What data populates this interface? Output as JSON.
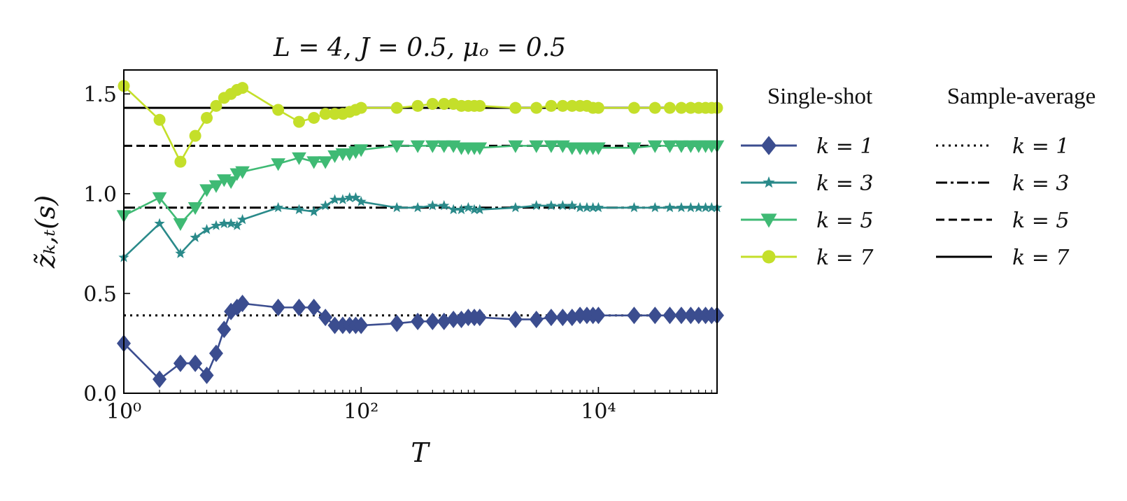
{
  "chart_data": {
    "type": "line",
    "title": "L = 4,  J = 0.5,  μₒ = 0.5",
    "xlabel": "T",
    "ylabel": "z̃ₖ,ₜ(s)",
    "xscale": "log",
    "xlim": [
      1,
      100000
    ],
    "ylim": [
      0.0,
      1.62
    ],
    "xticks": [
      {
        "value": 1,
        "label": "10⁰"
      },
      {
        "value": 100,
        "label": "10²"
      },
      {
        "value": 10000,
        "label": "10⁴"
      }
    ],
    "yticks": [
      {
        "value": 0.0,
        "label": "0.0"
      },
      {
        "value": 0.5,
        "label": "0.5"
      },
      {
        "value": 1.0,
        "label": "1.0"
      },
      {
        "value": 1.5,
        "label": "1.5"
      }
    ],
    "legend": {
      "placement": "right, outside plot",
      "single_shot_title": "Single-shot",
      "sample_average_title": "Sample-average"
    },
    "series": [
      {
        "name": "k = 1",
        "group": "single-shot",
        "color": "#3b4d8f",
        "marker": "diamond",
        "points": [
          [
            1,
            0.25
          ],
          [
            2,
            0.07
          ],
          [
            3,
            0.15
          ],
          [
            4,
            0.15
          ],
          [
            5,
            0.09
          ],
          [
            6,
            0.2
          ],
          [
            7,
            0.32
          ],
          [
            8,
            0.41
          ],
          [
            9,
            0.43
          ],
          [
            10,
            0.45
          ],
          [
            20,
            0.43
          ],
          [
            30,
            0.43
          ],
          [
            40,
            0.43
          ],
          [
            50,
            0.38
          ],
          [
            60,
            0.34
          ],
          [
            70,
            0.34
          ],
          [
            80,
            0.34
          ],
          [
            90,
            0.34
          ],
          [
            100,
            0.34
          ],
          [
            200,
            0.35
          ],
          [
            300,
            0.36
          ],
          [
            400,
            0.36
          ],
          [
            500,
            0.36
          ],
          [
            600,
            0.37
          ],
          [
            700,
            0.37
          ],
          [
            800,
            0.38
          ],
          [
            900,
            0.38
          ],
          [
            1000,
            0.38
          ],
          [
            2000,
            0.37
          ],
          [
            3000,
            0.37
          ],
          [
            4000,
            0.38
          ],
          [
            5000,
            0.38
          ],
          [
            6000,
            0.38
          ],
          [
            7000,
            0.39
          ],
          [
            8000,
            0.39
          ],
          [
            9000,
            0.39
          ],
          [
            10000,
            0.39
          ],
          [
            20000,
            0.39
          ],
          [
            30000,
            0.39
          ],
          [
            40000,
            0.39
          ],
          [
            50000,
            0.39
          ],
          [
            60000,
            0.39
          ],
          [
            70000,
            0.39
          ],
          [
            80000,
            0.39
          ],
          [
            90000,
            0.39
          ],
          [
            100000,
            0.39
          ]
        ]
      },
      {
        "name": "k = 3",
        "group": "single-shot",
        "color": "#2a8a8a",
        "marker": "star",
        "points": [
          [
            1,
            0.68
          ],
          [
            2,
            0.85
          ],
          [
            3,
            0.7
          ],
          [
            4,
            0.78
          ],
          [
            5,
            0.82
          ],
          [
            6,
            0.84
          ],
          [
            7,
            0.85
          ],
          [
            8,
            0.85
          ],
          [
            9,
            0.84
          ],
          [
            10,
            0.87
          ],
          [
            20,
            0.93
          ],
          [
            30,
            0.92
          ],
          [
            40,
            0.91
          ],
          [
            50,
            0.94
          ],
          [
            60,
            0.97
          ],
          [
            70,
            0.97
          ],
          [
            80,
            0.98
          ],
          [
            90,
            0.98
          ],
          [
            100,
            0.96
          ],
          [
            200,
            0.93
          ],
          [
            300,
            0.93
          ],
          [
            400,
            0.94
          ],
          [
            500,
            0.94
          ],
          [
            600,
            0.92
          ],
          [
            700,
            0.92
          ],
          [
            800,
            0.93
          ],
          [
            900,
            0.92
          ],
          [
            1000,
            0.92
          ],
          [
            2000,
            0.93
          ],
          [
            3000,
            0.94
          ],
          [
            4000,
            0.94
          ],
          [
            5000,
            0.94
          ],
          [
            6000,
            0.94
          ],
          [
            7000,
            0.93
          ],
          [
            8000,
            0.93
          ],
          [
            9000,
            0.93
          ],
          [
            10000,
            0.93
          ],
          [
            20000,
            0.93
          ],
          [
            30000,
            0.93
          ],
          [
            40000,
            0.93
          ],
          [
            50000,
            0.93
          ],
          [
            60000,
            0.93
          ],
          [
            70000,
            0.93
          ],
          [
            80000,
            0.93
          ],
          [
            90000,
            0.93
          ],
          [
            100000,
            0.93
          ]
        ]
      },
      {
        "name": "k = 5",
        "group": "single-shot",
        "color": "#3fba74",
        "marker": "triangle-down",
        "points": [
          [
            1,
            0.89
          ],
          [
            2,
            0.98
          ],
          [
            3,
            0.85
          ],
          [
            4,
            0.93
          ],
          [
            5,
            1.02
          ],
          [
            6,
            1.04
          ],
          [
            7,
            1.07
          ],
          [
            8,
            1.06
          ],
          [
            9,
            1.1
          ],
          [
            10,
            1.11
          ],
          [
            20,
            1.15
          ],
          [
            30,
            1.18
          ],
          [
            40,
            1.16
          ],
          [
            50,
            1.16
          ],
          [
            60,
            1.19
          ],
          [
            70,
            1.2
          ],
          [
            80,
            1.2
          ],
          [
            90,
            1.21
          ],
          [
            100,
            1.22
          ],
          [
            200,
            1.24
          ],
          [
            300,
            1.24
          ],
          [
            400,
            1.24
          ],
          [
            500,
            1.24
          ],
          [
            600,
            1.24
          ],
          [
            700,
            1.23
          ],
          [
            800,
            1.23
          ],
          [
            900,
            1.23
          ],
          [
            1000,
            1.23
          ],
          [
            2000,
            1.24
          ],
          [
            3000,
            1.24
          ],
          [
            4000,
            1.24
          ],
          [
            5000,
            1.24
          ],
          [
            6000,
            1.23
          ],
          [
            7000,
            1.23
          ],
          [
            8000,
            1.23
          ],
          [
            9000,
            1.23
          ],
          [
            10000,
            1.23
          ],
          [
            20000,
            1.23
          ],
          [
            30000,
            1.24
          ],
          [
            40000,
            1.24
          ],
          [
            50000,
            1.24
          ],
          [
            60000,
            1.24
          ],
          [
            70000,
            1.24
          ],
          [
            80000,
            1.24
          ],
          [
            90000,
            1.24
          ],
          [
            100000,
            1.24
          ]
        ]
      },
      {
        "name": "k = 7",
        "group": "single-shot",
        "color": "#c4df2a",
        "marker": "circle",
        "points": [
          [
            1,
            1.54
          ],
          [
            2,
            1.37
          ],
          [
            3,
            1.16
          ],
          [
            4,
            1.29
          ],
          [
            5,
            1.38
          ],
          [
            6,
            1.44
          ],
          [
            7,
            1.48
          ],
          [
            8,
            1.5
          ],
          [
            9,
            1.52
          ],
          [
            10,
            1.53
          ],
          [
            20,
            1.42
          ],
          [
            30,
            1.36
          ],
          [
            40,
            1.38
          ],
          [
            50,
            1.4
          ],
          [
            60,
            1.4
          ],
          [
            70,
            1.4
          ],
          [
            80,
            1.41
          ],
          [
            90,
            1.42
          ],
          [
            100,
            1.43
          ],
          [
            200,
            1.43
          ],
          [
            300,
            1.44
          ],
          [
            400,
            1.45
          ],
          [
            500,
            1.45
          ],
          [
            600,
            1.45
          ],
          [
            700,
            1.44
          ],
          [
            800,
            1.44
          ],
          [
            900,
            1.44
          ],
          [
            1000,
            1.44
          ],
          [
            2000,
            1.43
          ],
          [
            3000,
            1.43
          ],
          [
            4000,
            1.44
          ],
          [
            5000,
            1.44
          ],
          [
            6000,
            1.44
          ],
          [
            7000,
            1.44
          ],
          [
            8000,
            1.44
          ],
          [
            9000,
            1.43
          ],
          [
            10000,
            1.43
          ],
          [
            20000,
            1.43
          ],
          [
            30000,
            1.43
          ],
          [
            40000,
            1.43
          ],
          [
            50000,
            1.43
          ],
          [
            60000,
            1.43
          ],
          [
            70000,
            1.43
          ],
          [
            80000,
            1.43
          ],
          [
            90000,
            1.43
          ],
          [
            100000,
            1.43
          ]
        ]
      },
      {
        "name": "k = 1",
        "group": "sample-average",
        "color": "#000000",
        "dash": "dotted",
        "value": 0.39
      },
      {
        "name": "k = 3",
        "group": "sample-average",
        "color": "#000000",
        "dash": "dashdot",
        "value": 0.93
      },
      {
        "name": "k = 5",
        "group": "sample-average",
        "color": "#000000",
        "dash": "dashed",
        "value": 1.24
      },
      {
        "name": "k = 7",
        "group": "sample-average",
        "color": "#000000",
        "dash": "solid",
        "value": 1.43
      }
    ]
  }
}
